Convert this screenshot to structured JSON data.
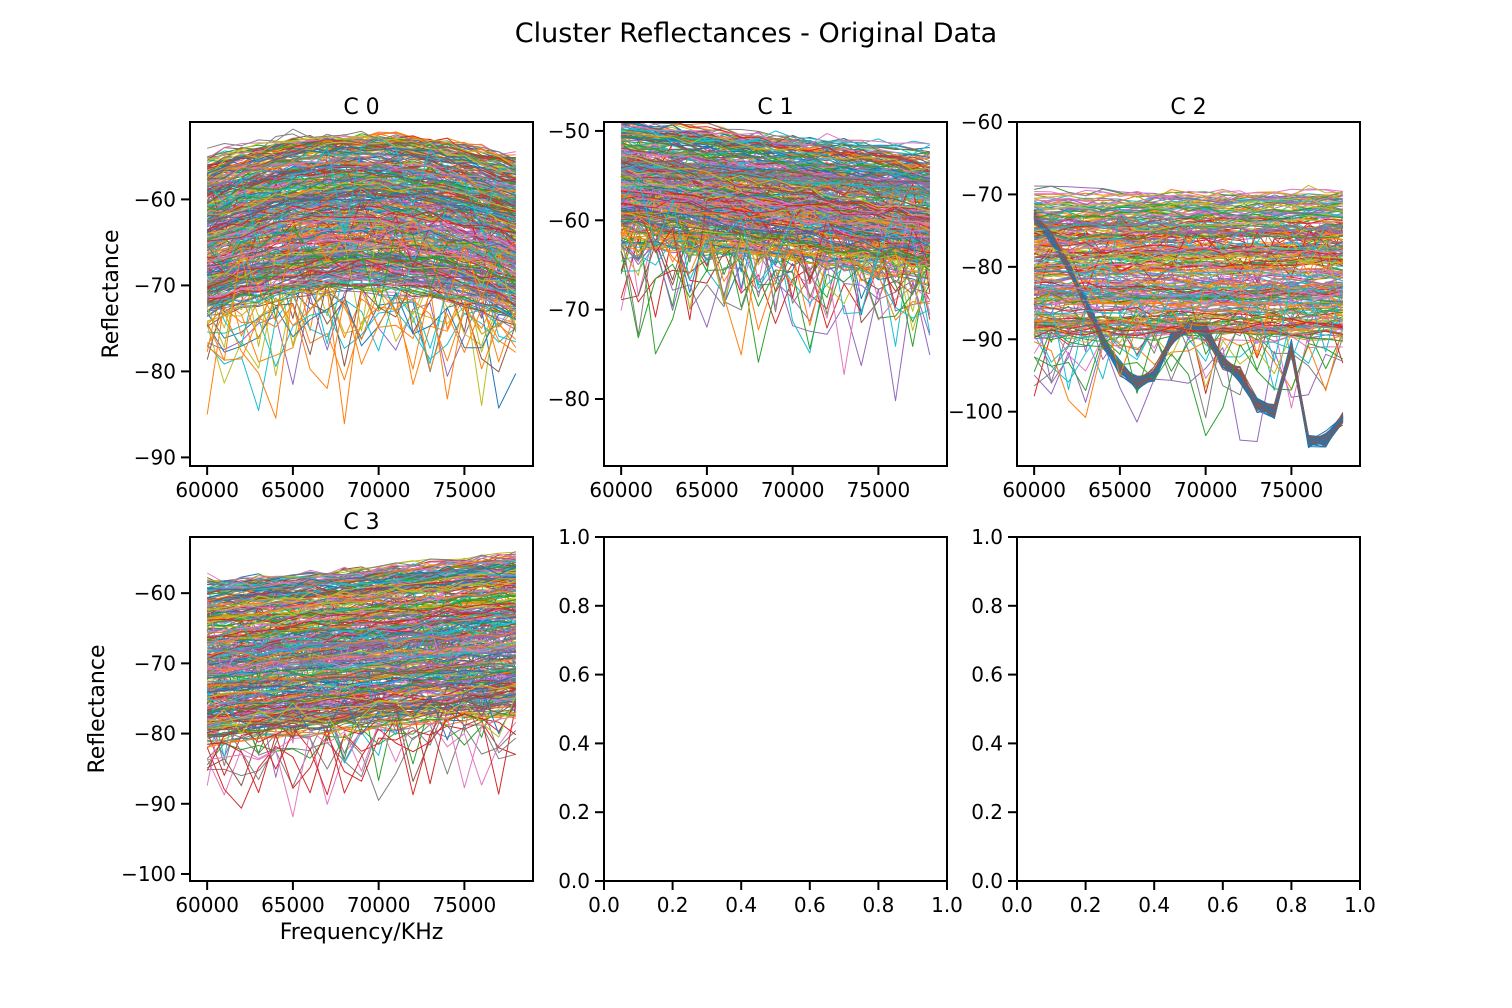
{
  "figure": {
    "title": "Cluster Reflectances - Original Data"
  },
  "palette": [
    "#1f77b4",
    "#ff7f0e",
    "#2ca02c",
    "#d62728",
    "#9467bd",
    "#8c564b",
    "#e377c2",
    "#7f7f7f",
    "#bcbd22",
    "#17becf"
  ],
  "chart_data": [
    {
      "type": "line",
      "title": "C 0",
      "xlabel": "",
      "ylabel": "Reflectance",
      "xlim": [
        59000,
        79000
      ],
      "ylim": [
        -91,
        -51
      ],
      "xticks": [
        60000,
        65000,
        70000,
        75000
      ],
      "yticks": [
        -90,
        -80,
        -70,
        -60
      ],
      "x": [
        60000,
        61000,
        62000,
        63000,
        64000,
        65000,
        66000,
        67000,
        68000,
        69000,
        70000,
        71000,
        72000,
        73000,
        74000,
        75000,
        76000,
        77000,
        78000
      ],
      "series_count": 420,
      "band": {
        "upper": -54,
        "lower": -72,
        "shape": "arched",
        "noise_floor": -89
      },
      "outliers_min": -89.3
    },
    {
      "type": "line",
      "title": "C 1",
      "xlabel": "",
      "ylabel": "",
      "xlim": [
        59000,
        79000
      ],
      "ylim": [
        -87.5,
        -49
      ],
      "xticks": [
        60000,
        65000,
        70000,
        75000
      ],
      "yticks": [
        -80,
        -70,
        -60,
        -50
      ],
      "x": [
        60000,
        61000,
        62000,
        63000,
        64000,
        65000,
        66000,
        67000,
        68000,
        69000,
        70000,
        71000,
        72000,
        73000,
        74000,
        75000,
        76000,
        77000,
        78000
      ],
      "series_count": 380,
      "band": {
        "upper": -50.5,
        "lower": -64,
        "shape": "decreasing",
        "noise_floor": -85.5
      },
      "outliers_min": -85.5
    },
    {
      "type": "line",
      "title": "C 2",
      "xlabel": "",
      "ylabel": "",
      "xlim": [
        59000,
        79000
      ],
      "ylim": [
        -107.5,
        -60
      ],
      "xticks": [
        60000,
        65000,
        70000,
        75000
      ],
      "yticks": [
        -100,
        -90,
        -80,
        -70,
        -60
      ],
      "x": [
        60000,
        61000,
        62000,
        63000,
        64000,
        65000,
        66000,
        67000,
        68000,
        69000,
        70000,
        71000,
        72000,
        73000,
        74000,
        75000,
        76000,
        77000,
        78000
      ],
      "series_count": 360,
      "band": {
        "upper": -70,
        "lower": -90,
        "shape": "flat",
        "noise_floor": -105
      },
      "dip_profile": [
        -73,
        -76,
        -80,
        -85,
        -90,
        -94,
        -96,
        -95,
        -90,
        -88,
        -89,
        -93,
        -95,
        -99,
        -100,
        -91,
        -104,
        -104,
        -101
      ],
      "outliers_min": -105
    },
    {
      "type": "line",
      "title": "C 3",
      "xlabel": "Frequency/KHz",
      "ylabel": "Reflectance",
      "xlim": [
        59000,
        79000
      ],
      "ylim": [
        -101,
        -52
      ],
      "xticks": [
        60000,
        65000,
        70000,
        75000
      ],
      "yticks": [
        -100,
        -90,
        -80,
        -70,
        -60
      ],
      "x": [
        60000,
        61000,
        62000,
        63000,
        64000,
        65000,
        66000,
        67000,
        68000,
        69000,
        70000,
        71000,
        72000,
        73000,
        74000,
        75000,
        76000,
        77000,
        78000
      ],
      "series_count": 420,
      "band": {
        "upper": -57,
        "lower": -80,
        "shape": "rising",
        "noise_floor": -98
      },
      "outliers_min": -98.5
    },
    {
      "type": "line",
      "title": "",
      "empty": true,
      "xlim": [
        0,
        1
      ],
      "ylim": [
        0,
        1
      ],
      "xticks": [
        0.0,
        0.2,
        0.4,
        0.6,
        0.8,
        1.0
      ],
      "yticks": [
        0.0,
        0.2,
        0.4,
        0.6,
        0.8,
        1.0
      ]
    },
    {
      "type": "line",
      "title": "",
      "empty": true,
      "xlim": [
        0,
        1
      ],
      "ylim": [
        0,
        1
      ],
      "xticks": [
        0.0,
        0.2,
        0.4,
        0.6,
        0.8,
        1.0
      ],
      "yticks": [
        0.0,
        0.2,
        0.4,
        0.6,
        0.8,
        1.0
      ]
    }
  ]
}
